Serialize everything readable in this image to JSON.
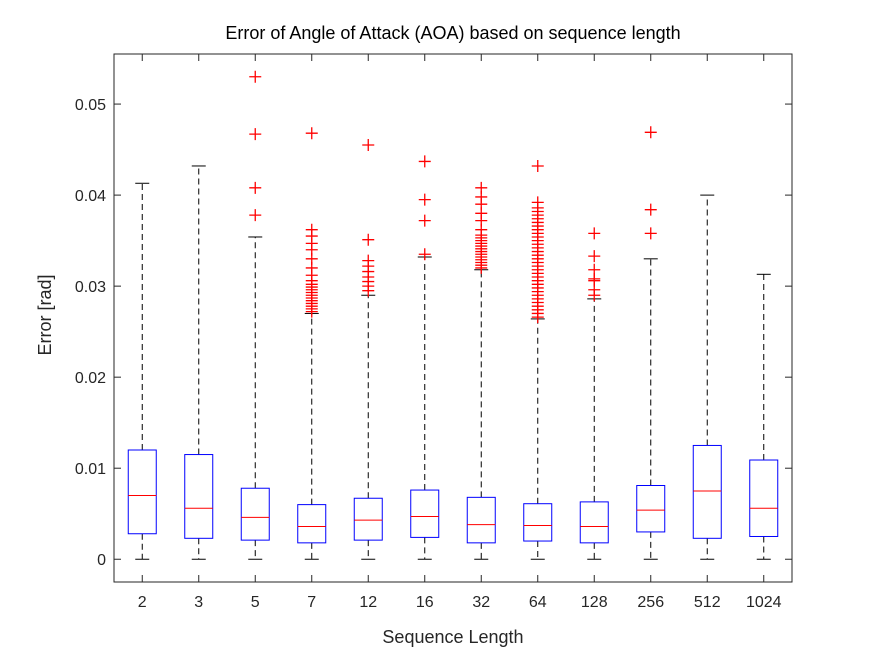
{
  "chart_data": {
    "type": "box",
    "title": "Error of Angle of Attack (AOA) based on sequence length",
    "xlabel": "Sequence Length",
    "ylabel": "Error [rad]",
    "ylim": [
      -0.0025,
      0.0555
    ],
    "yticks": [
      0,
      0.01,
      0.02,
      0.03,
      0.04,
      0.05
    ],
    "ytick_labels": [
      "0",
      "0.01",
      "0.02",
      "0.03",
      "0.04",
      "0.05"
    ],
    "categories": [
      "2",
      "3",
      "5",
      "7",
      "12",
      "16",
      "32",
      "64",
      "128",
      "256",
      "512",
      "1024"
    ],
    "boxes": [
      {
        "category": "2",
        "whisker_low": 0.0,
        "q1": 0.0028,
        "median": 0.007,
        "q3": 0.012,
        "whisker_high": 0.0413,
        "outliers": []
      },
      {
        "category": "3",
        "whisker_low": 0.0,
        "q1": 0.0023,
        "median": 0.0056,
        "q3": 0.0115,
        "whisker_high": 0.0432,
        "outliers": []
      },
      {
        "category": "5",
        "whisker_low": 0.0,
        "q1": 0.0021,
        "median": 0.0046,
        "q3": 0.0078,
        "whisker_high": 0.0354,
        "outliers": [
          0.0378,
          0.0408,
          0.0467,
          0.053
        ]
      },
      {
        "category": "7",
        "whisker_low": 0.0,
        "q1": 0.0018,
        "median": 0.0036,
        "q3": 0.006,
        "whisker_high": 0.027,
        "outliers": [
          0.0272,
          0.0275,
          0.0278,
          0.0281,
          0.0284,
          0.0287,
          0.029,
          0.0293,
          0.0296,
          0.0299,
          0.0302,
          0.0306,
          0.0312,
          0.032,
          0.033,
          0.034,
          0.0347,
          0.0355,
          0.0362,
          0.0468
        ]
      },
      {
        "category": "12",
        "whisker_low": 0.0,
        "q1": 0.0021,
        "median": 0.0043,
        "q3": 0.0067,
        "whisker_high": 0.029,
        "outliers": [
          0.0295,
          0.03,
          0.0305,
          0.031,
          0.0316,
          0.0322,
          0.0328,
          0.0351,
          0.0455
        ]
      },
      {
        "category": "16",
        "whisker_low": 0.0,
        "q1": 0.0024,
        "median": 0.0047,
        "q3": 0.0076,
        "whisker_high": 0.0332,
        "outliers": [
          0.0335,
          0.0372,
          0.0395,
          0.0437
        ]
      },
      {
        "category": "32",
        "whisker_low": 0.0,
        "q1": 0.0018,
        "median": 0.0038,
        "q3": 0.0068,
        "whisker_high": 0.0318,
        "outliers": [
          0.032,
          0.0323,
          0.0326,
          0.0329,
          0.0332,
          0.0335,
          0.0338,
          0.0341,
          0.0344,
          0.0347,
          0.035,
          0.0353,
          0.0356,
          0.0362,
          0.0372,
          0.038,
          0.039,
          0.0398,
          0.0408
        ]
      },
      {
        "category": "64",
        "whisker_low": 0.0,
        "q1": 0.002,
        "median": 0.0037,
        "q3": 0.0061,
        "whisker_high": 0.0264,
        "outliers": [
          0.0266,
          0.027,
          0.0274,
          0.0278,
          0.0282,
          0.0286,
          0.029,
          0.0294,
          0.0298,
          0.0302,
          0.0306,
          0.031,
          0.0314,
          0.0318,
          0.0322,
          0.0326,
          0.033,
          0.0334,
          0.0338,
          0.0342,
          0.0346,
          0.035,
          0.0354,
          0.0358,
          0.0362,
          0.0366,
          0.037,
          0.0374,
          0.0378,
          0.0382,
          0.0386,
          0.0392,
          0.0432
        ]
      },
      {
        "category": "128",
        "whisker_low": 0.0,
        "q1": 0.0018,
        "median": 0.0036,
        "q3": 0.0063,
        "whisker_high": 0.0286,
        "outliers": [
          0.029,
          0.0296,
          0.0306,
          0.0308,
          0.0318,
          0.0333,
          0.0358
        ]
      },
      {
        "category": "256",
        "whisker_low": 0.0,
        "q1": 0.003,
        "median": 0.0054,
        "q3": 0.0081,
        "whisker_high": 0.033,
        "outliers": [
          0.0358,
          0.0384,
          0.0469
        ]
      },
      {
        "category": "512",
        "whisker_low": 0.0,
        "q1": 0.0023,
        "median": 0.0075,
        "q3": 0.0125,
        "whisker_high": 0.04,
        "outliers": []
      },
      {
        "category": "1024",
        "whisker_low": 0.0,
        "q1": 0.0025,
        "median": 0.0056,
        "q3": 0.0109,
        "whisker_high": 0.0313,
        "outliers": []
      }
    ],
    "grid": false,
    "legend": "none"
  },
  "colors": {
    "box": "#0000ff",
    "median": "#ff0000",
    "outlier": "#ff0000",
    "whisker": "#000000",
    "axes": "#262626"
  }
}
